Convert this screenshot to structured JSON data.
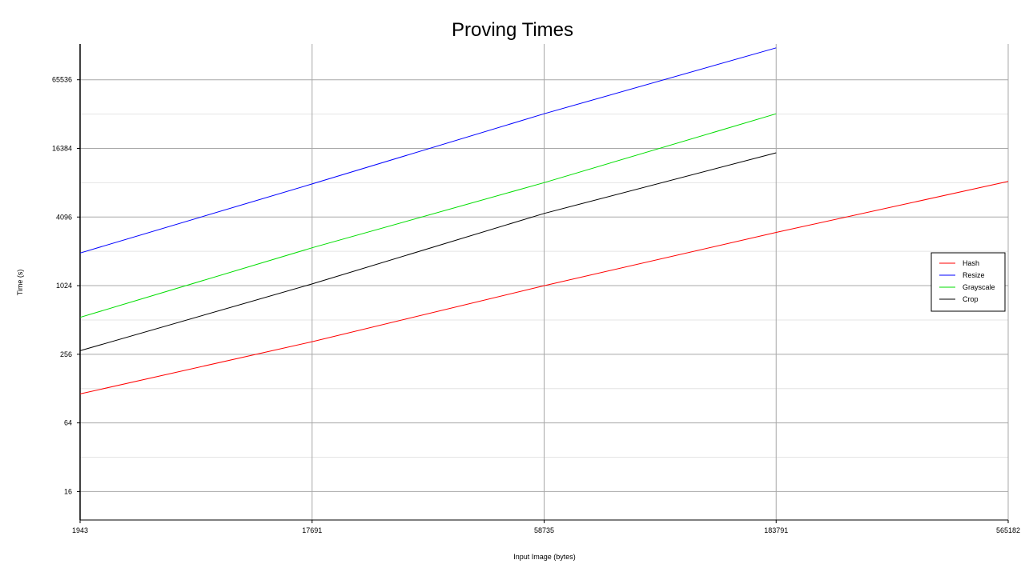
{
  "chart_data": {
    "type": "line",
    "title": "Proving Times",
    "xlabel": "Input Image (bytes)",
    "ylabel": "Time (s)",
    "x_scale": "log",
    "y_scale": "log2",
    "x": [
      1943,
      17691,
      58735,
      183791,
      565182
    ],
    "x_tick_labels": [
      "1943",
      "17691",
      "58735",
      "183791",
      "565182"
    ],
    "y_ticks": [
      16,
      64,
      256,
      1024,
      4096,
      16384,
      65536
    ],
    "y_tick_labels": [
      "16",
      "64",
      "256",
      "1024",
      "4096",
      "16384",
      "65536"
    ],
    "ylim": [
      9,
      135000
    ],
    "grid": true,
    "legend_position": "right",
    "series": [
      {
        "name": "Hash",
        "color": "#ff0000",
        "values": [
          115,
          330,
          1024,
          3000,
          8400
        ]
      },
      {
        "name": "Resize",
        "color": "#0000ff",
        "values": [
          1980,
          8000,
          33000,
          125000,
          null
        ]
      },
      {
        "name": "Grayscale",
        "color": "#00dd00",
        "values": [
          540,
          2200,
          8200,
          33000,
          null
        ]
      },
      {
        "name": "Crop",
        "color": "#000000",
        "values": [
          275,
          1060,
          4400,
          15000,
          null
        ]
      }
    ]
  }
}
